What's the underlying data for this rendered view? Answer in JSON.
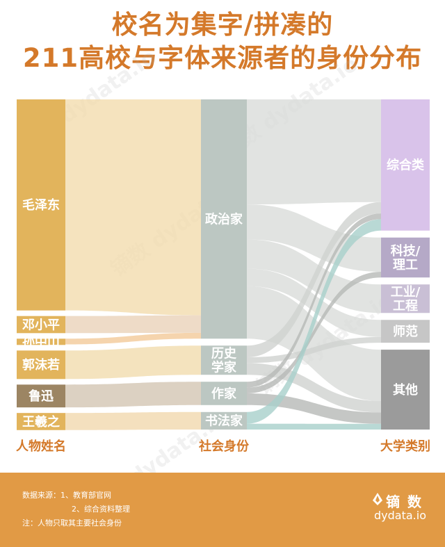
{
  "title": {
    "line1": "校名为集字/拼凑的",
    "line2": "211高校与字体来源者的身份分布"
  },
  "columns": {
    "people": "人物姓名",
    "roles": "社会身份",
    "university": "大学类别"
  },
  "colors": {
    "title": "#d4792a",
    "people": "#e2b45c",
    "people_alt": "#9c8563",
    "roles": "#bcc7c2",
    "footer": "#e19a45",
    "uni_comprehensive": "#d9c3ea",
    "uni_science": "#b5a9c7",
    "uni_industry": "#c9bfd5",
    "uni_normal": "#c6c6c6",
    "uni_other": "#9b9b9b"
  },
  "chart_data": {
    "type": "sankey",
    "title": "校名为集字/拼凑的211高校与字体来源者的身份分布",
    "nodes": [
      {
        "id": "mao",
        "label": "毛泽东",
        "column": "人物姓名",
        "value": 37
      },
      {
        "id": "deng",
        "label": "邓小平",
        "column": "人物姓名",
        "value": 3
      },
      {
        "id": "sun",
        "label": "孙中山",
        "column": "人物姓名",
        "value": 1
      },
      {
        "id": "guo",
        "label": "郭沫若",
        "column": "人物姓名",
        "value": 5
      },
      {
        "id": "lu",
        "label": "鲁迅",
        "column": "人物姓名",
        "value": 4
      },
      {
        "id": "wang",
        "label": "王羲之",
        "column": "人物姓名",
        "value": 3
      },
      {
        "id": "politician",
        "label": "政治家",
        "column": "社会身份",
        "value": 41
      },
      {
        "id": "historian",
        "label": "历史学家",
        "column": "社会身份",
        "value": 5
      },
      {
        "id": "writer",
        "label": "作家",
        "column": "社会身份",
        "value": 4
      },
      {
        "id": "calligrapher",
        "label": "书法家",
        "column": "社会身份",
        "value": 3
      },
      {
        "id": "comprehensive",
        "label": "综合类",
        "column": "大学类别",
        "value": 23
      },
      {
        "id": "science",
        "label": "科技/理工",
        "column": "大学类别",
        "value": 7
      },
      {
        "id": "industry",
        "label": "工业/工程",
        "column": "大学类别",
        "value": 5
      },
      {
        "id": "normal",
        "label": "师范",
        "column": "大学类别",
        "value": 4
      },
      {
        "id": "other",
        "label": "其他",
        "column": "大学类别",
        "value": 14
      }
    ],
    "links": [
      {
        "source": "mao",
        "target": "politician",
        "value": 37
      },
      {
        "source": "deng",
        "target": "politician",
        "value": 3
      },
      {
        "source": "sun",
        "target": "politician",
        "value": 1
      },
      {
        "source": "guo",
        "target": "historian",
        "value": 5
      },
      {
        "source": "lu",
        "target": "writer",
        "value": 4
      },
      {
        "source": "wang",
        "target": "calligrapher",
        "value": 3
      },
      {
        "source": "politician",
        "target": "comprehensive",
        "value": 18
      },
      {
        "source": "politician",
        "target": "science",
        "value": 6
      },
      {
        "source": "politician",
        "target": "industry",
        "value": 5
      },
      {
        "source": "politician",
        "target": "normal",
        "value": 3
      },
      {
        "source": "politician",
        "target": "other",
        "value": 9
      },
      {
        "source": "historian",
        "target": "comprehensive",
        "value": 2
      },
      {
        "source": "historian",
        "target": "normal",
        "value": 1
      },
      {
        "source": "historian",
        "target": "other",
        "value": 2
      },
      {
        "source": "writer",
        "target": "comprehensive",
        "value": 1
      },
      {
        "source": "writer",
        "target": "science",
        "value": 1
      },
      {
        "source": "writer",
        "target": "other",
        "value": 2
      },
      {
        "source": "calligrapher",
        "target": "comprehensive",
        "value": 2
      },
      {
        "source": "calligrapher",
        "target": "other",
        "value": 1
      }
    ]
  },
  "footer": {
    "source_line1": "数据来源：1、教育部官网",
    "source_line2": "2、综合资料整理",
    "note": "注：人物只取其主要社会身份",
    "brand_name": "镝 数",
    "brand_url": "dydata.io"
  },
  "watermark": "镝数 dydata.io"
}
